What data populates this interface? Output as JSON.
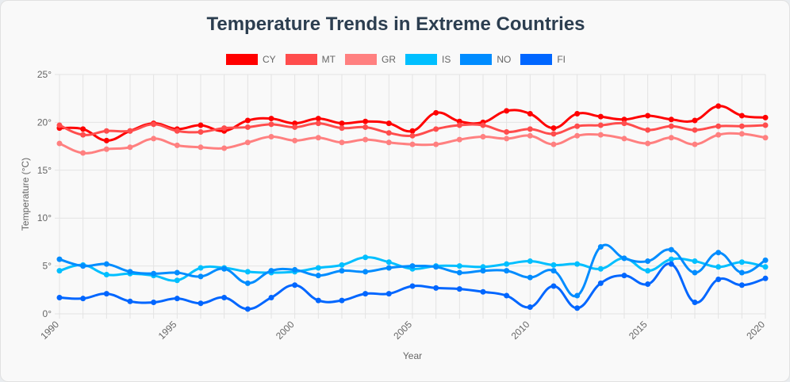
{
  "chart_data": {
    "type": "line",
    "title": "Temperature Trends in Extreme Countries",
    "xlabel": "Year",
    "ylabel": "Temperature (°C)",
    "ylim": [
      0,
      25
    ],
    "yticks": [
      "0°",
      "5°",
      "10°",
      "15°",
      "20°",
      "25°"
    ],
    "xtick_labels": [
      "1990",
      "1995",
      "2000",
      "2005",
      "2010",
      "2015",
      "2020"
    ],
    "x": [
      1990,
      1991,
      1992,
      1993,
      1994,
      1995,
      1996,
      1997,
      1998,
      1999,
      2000,
      2001,
      2002,
      2003,
      2004,
      2005,
      2006,
      2007,
      2008,
      2009,
      2010,
      2011,
      2012,
      2013,
      2014,
      2015,
      2016,
      2017,
      2018,
      2019,
      2020
    ],
    "series": [
      {
        "name": "CY",
        "color": "#ff0000",
        "values": [
          19.4,
          19.3,
          18.1,
          19.1,
          19.9,
          19.3,
          19.7,
          19.1,
          20.2,
          20.4,
          19.9,
          20.4,
          19.9,
          20.1,
          19.9,
          19.1,
          21.0,
          20.1,
          20.0,
          21.2,
          20.9,
          19.4,
          20.9,
          20.6,
          20.3,
          20.7,
          20.3,
          20.2,
          21.7,
          20.7,
          20.5
        ]
      },
      {
        "name": "MT",
        "color": "#ff4d4d",
        "values": [
          19.7,
          18.7,
          19.1,
          19.1,
          19.8,
          19.1,
          19.0,
          19.4,
          19.5,
          19.8,
          19.5,
          19.9,
          19.4,
          19.5,
          18.9,
          18.6,
          19.3,
          19.7,
          19.7,
          19.0,
          19.3,
          18.8,
          19.6,
          19.7,
          19.9,
          19.2,
          19.6,
          19.2,
          19.6,
          19.6,
          19.7
        ]
      },
      {
        "name": "GR",
        "color": "#ff8080",
        "values": [
          17.8,
          16.8,
          17.2,
          17.4,
          18.3,
          17.6,
          17.4,
          17.3,
          17.9,
          18.5,
          18.1,
          18.4,
          17.9,
          18.2,
          17.9,
          17.7,
          17.7,
          18.2,
          18.5,
          18.3,
          18.6,
          17.7,
          18.6,
          18.7,
          18.3,
          17.8,
          18.4,
          17.7,
          18.7,
          18.8,
          18.4
        ]
      },
      {
        "name": "IS",
        "color": "#00bfff",
        "values": [
          4.5,
          5.1,
          4.1,
          4.2,
          4.0,
          3.5,
          4.8,
          4.8,
          4.4,
          4.3,
          4.4,
          4.8,
          5.1,
          5.9,
          5.4,
          4.7,
          5.0,
          5.0,
          4.9,
          5.2,
          5.5,
          5.1,
          5.2,
          4.7,
          5.8,
          4.5,
          5.7,
          5.5,
          4.9,
          5.4,
          4.9
        ]
      },
      {
        "name": "NO",
        "color": "#008cff",
        "values": [
          5.7,
          5.0,
          5.2,
          4.4,
          4.2,
          4.3,
          3.9,
          4.7,
          3.2,
          4.5,
          4.6,
          4.0,
          4.5,
          4.4,
          4.8,
          5.0,
          4.9,
          4.3,
          4.5,
          4.5,
          3.8,
          4.5,
          1.9,
          7.0,
          5.8,
          5.5,
          6.7,
          4.3,
          6.4,
          4.3,
          5.6
        ]
      },
      {
        "name": "FI",
        "color": "#0066ff",
        "values": [
          1.7,
          1.6,
          2.1,
          1.3,
          1.2,
          1.6,
          1.1,
          1.7,
          0.5,
          1.7,
          3.0,
          1.4,
          1.4,
          2.1,
          2.1,
          2.9,
          2.7,
          2.6,
          2.3,
          1.9,
          0.7,
          2.9,
          0.6,
          3.2,
          4.0,
          3.1,
          5.2,
          1.2,
          3.6,
          3.0,
          3.7
        ]
      }
    ]
  }
}
